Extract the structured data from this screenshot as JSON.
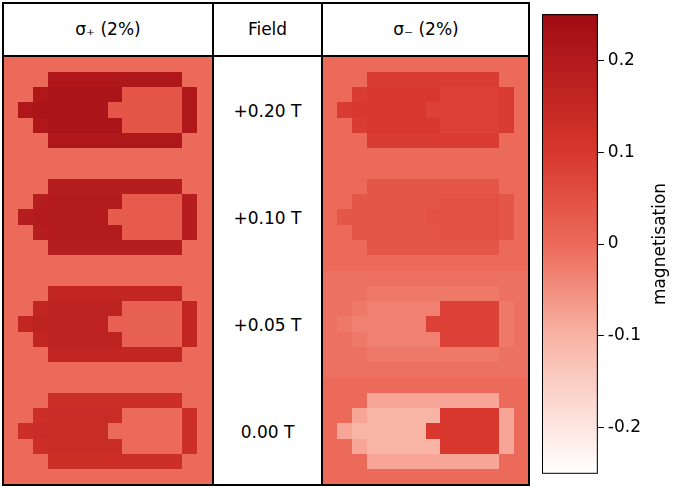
{
  "chart_data": {
    "type": "heatmap",
    "row_header": "Field",
    "rows": [
      "+0.20 T",
      "+0.10 T",
      "+0.05 T",
      "0.00 T"
    ],
    "columns": [
      {
        "title": "σ₊ (2%)",
        "cells": [
          [
            [
              0,
              0,
              0,
              0,
              0,
              0,
              0,
              0,
              0,
              0,
              0,
              0,
              0,
              0
            ],
            [
              0,
              0,
              0,
              0.21,
              0.21,
              0.21,
              0.21,
              0.21,
              0.21,
              0.21,
              0.21,
              0.21,
              0,
              0
            ],
            [
              0,
              0,
              0.21,
              0.22,
              0.22,
              0.22,
              0.22,
              0.22,
              0.04,
              0.04,
              0.04,
              0.04,
              0.21,
              0
            ],
            [
              0,
              0.21,
              0.22,
              0.22,
              0.22,
              0.22,
              0.22,
              0.04,
              0.04,
              0.04,
              0.04,
              0.04,
              0.21,
              0
            ],
            [
              0,
              0,
              0.21,
              0.22,
              0.22,
              0.22,
              0.22,
              0.22,
              0.04,
              0.04,
              0.04,
              0.04,
              0.21,
              0
            ],
            [
              0,
              0,
              0,
              0.21,
              0.21,
              0.21,
              0.21,
              0.21,
              0.21,
              0.21,
              0.21,
              0.21,
              0,
              0
            ],
            [
              0,
              0,
              0,
              0,
              0,
              0,
              0,
              0,
              0,
              0,
              0,
              0,
              0,
              0
            ]
          ],
          [
            [
              0,
              0,
              0,
              0,
              0,
              0,
              0,
              0,
              0,
              0,
              0,
              0,
              0,
              0
            ],
            [
              0,
              0,
              0,
              0.19,
              0.19,
              0.19,
              0.19,
              0.19,
              0.19,
              0.19,
              0.19,
              0.19,
              0,
              0
            ],
            [
              0,
              0,
              0.19,
              0.2,
              0.2,
              0.2,
              0.2,
              0.2,
              0.03,
              0.03,
              0.03,
              0.03,
              0.19,
              0
            ],
            [
              0,
              0.19,
              0.2,
              0.2,
              0.2,
              0.2,
              0.2,
              0.03,
              0.03,
              0.03,
              0.03,
              0.03,
              0.19,
              0
            ],
            [
              0,
              0,
              0.19,
              0.2,
              0.2,
              0.2,
              0.2,
              0.2,
              0.03,
              0.03,
              0.03,
              0.03,
              0.19,
              0
            ],
            [
              0,
              0,
              0,
              0.19,
              0.19,
              0.19,
              0.19,
              0.19,
              0.19,
              0.19,
              0.19,
              0.19,
              0,
              0
            ],
            [
              0,
              0,
              0,
              0,
              0,
              0,
              0,
              0,
              0,
              0,
              0,
              0,
              0,
              0
            ]
          ],
          [
            [
              0,
              0,
              0,
              0,
              0,
              0,
              0,
              0,
              0,
              0,
              0,
              0,
              0,
              0
            ],
            [
              0,
              0,
              0,
              0.16,
              0.16,
              0.16,
              0.16,
              0.16,
              0.16,
              0.16,
              0.16,
              0.16,
              0,
              0
            ],
            [
              0,
              0,
              0.16,
              0.17,
              0.17,
              0.17,
              0.17,
              0.17,
              0.02,
              0.02,
              0.02,
              0.02,
              0.16,
              0
            ],
            [
              0,
              0.16,
              0.17,
              0.17,
              0.17,
              0.17,
              0.17,
              0.02,
              0.02,
              0.02,
              0.02,
              0.02,
              0.16,
              0
            ],
            [
              0,
              0,
              0.16,
              0.17,
              0.17,
              0.17,
              0.17,
              0.17,
              0.02,
              0.02,
              0.02,
              0.02,
              0.16,
              0
            ],
            [
              0,
              0,
              0,
              0.16,
              0.16,
              0.16,
              0.16,
              0.16,
              0.16,
              0.16,
              0.16,
              0.16,
              0,
              0
            ],
            [
              0,
              0,
              0,
              0,
              0,
              0,
              0,
              0,
              0,
              0,
              0,
              0,
              0,
              0
            ]
          ],
          [
            [
              0,
              0,
              0,
              0,
              0,
              0,
              0,
              0,
              0,
              0,
              0,
              0,
              0,
              0
            ],
            [
              0,
              0,
              0,
              0.13,
              0.13,
              0.13,
              0.13,
              0.13,
              0.13,
              0.13,
              0.13,
              0.13,
              0,
              0
            ],
            [
              0,
              0,
              0.13,
              0.14,
              0.14,
              0.14,
              0.14,
              0.14,
              0,
              0,
              0,
              0,
              0.13,
              0
            ],
            [
              0,
              0.13,
              0.14,
              0.14,
              0.14,
              0.14,
              0.14,
              0,
              0,
              0,
              0,
              0,
              0.13,
              0
            ],
            [
              0,
              0,
              0.13,
              0.14,
              0.14,
              0.14,
              0.14,
              0.14,
              0,
              0,
              0,
              0,
              0.13,
              0
            ],
            [
              0,
              0,
              0,
              0.13,
              0.13,
              0.13,
              0.13,
              0.13,
              0.13,
              0.13,
              0.13,
              0.13,
              0,
              0
            ],
            [
              0,
              0,
              0,
              0,
              0,
              0,
              0,
              0,
              0,
              0,
              0,
              0,
              0,
              0
            ]
          ]
        ]
      },
      {
        "title": "σ₋ (2%)",
        "cells": [
          [
            [
              0,
              0,
              0,
              0,
              0,
              0,
              0,
              0,
              0,
              0,
              0,
              0,
              0,
              0
            ],
            [
              0,
              0,
              0,
              0.09,
              0.09,
              0.09,
              0.09,
              0.09,
              0.09,
              0.09,
              0.09,
              0.09,
              0,
              0
            ],
            [
              0,
              0,
              0.09,
              0.1,
              0.1,
              0.1,
              0.1,
              0.1,
              0.08,
              0.08,
              0.08,
              0.08,
              0.09,
              0
            ],
            [
              0,
              0.09,
              0.1,
              0.1,
              0.1,
              0.1,
              0.1,
              0.08,
              0.08,
              0.08,
              0.08,
              0.08,
              0.09,
              0
            ],
            [
              0,
              0,
              0.09,
              0.1,
              0.1,
              0.1,
              0.1,
              0.1,
              0.08,
              0.08,
              0.08,
              0.08,
              0.09,
              0
            ],
            [
              0,
              0,
              0,
              0.09,
              0.09,
              0.09,
              0.09,
              0.09,
              0.09,
              0.09,
              0.09,
              0.09,
              0,
              0
            ],
            [
              0,
              0,
              0,
              0,
              0,
              0,
              0,
              0,
              0,
              0,
              0,
              0,
              0,
              0
            ]
          ],
          [
            [
              0,
              0,
              0,
              0,
              0,
              0,
              0,
              0,
              0,
              0,
              0,
              0,
              0,
              0
            ],
            [
              0,
              0,
              0,
              0.04,
              0.04,
              0.04,
              0.04,
              0.04,
              0.04,
              0.04,
              0.04,
              0.04,
              0,
              0
            ],
            [
              0,
              0,
              0.04,
              0.04,
              0.04,
              0.04,
              0.04,
              0.04,
              0.05,
              0.05,
              0.05,
              0.05,
              0.04,
              0
            ],
            [
              0,
              0.04,
              0.04,
              0.04,
              0.04,
              0.04,
              0.04,
              0.05,
              0.05,
              0.05,
              0.05,
              0.05,
              0.04,
              0
            ],
            [
              0,
              0,
              0.04,
              0.04,
              0.04,
              0.04,
              0.04,
              0.04,
              0.05,
              0.05,
              0.05,
              0.05,
              0.04,
              0
            ],
            [
              0,
              0,
              0,
              0.04,
              0.04,
              0.04,
              0.04,
              0.04,
              0.04,
              0.04,
              0.04,
              0.04,
              0,
              0
            ],
            [
              0,
              0,
              0,
              0,
              0,
              0,
              0,
              0,
              0,
              0,
              0,
              0,
              0,
              0
            ]
          ],
          [
            [
              -0.01,
              -0.01,
              -0.01,
              -0.01,
              -0.01,
              -0.01,
              -0.01,
              -0.01,
              -0.01,
              -0.01,
              -0.01,
              -0.01,
              -0.01,
              -0.01
            ],
            [
              -0.01,
              -0.01,
              -0.01,
              -0.02,
              -0.02,
              -0.02,
              -0.02,
              -0.02,
              -0.02,
              -0.02,
              -0.02,
              -0.02,
              -0.01,
              -0.01
            ],
            [
              -0.01,
              -0.01,
              -0.02,
              -0.03,
              -0.03,
              -0.03,
              -0.03,
              -0.03,
              0.08,
              0.08,
              0.08,
              0.08,
              -0.02,
              -0.01
            ],
            [
              -0.01,
              -0.02,
              -0.03,
              -0.03,
              -0.03,
              -0.03,
              -0.03,
              0.08,
              0.08,
              0.08,
              0.08,
              0.08,
              -0.02,
              -0.01
            ],
            [
              -0.01,
              -0.01,
              -0.02,
              -0.03,
              -0.03,
              -0.03,
              -0.03,
              -0.03,
              0.08,
              0.08,
              0.08,
              0.08,
              -0.02,
              -0.01
            ],
            [
              -0.01,
              -0.01,
              -0.01,
              -0.02,
              -0.02,
              -0.02,
              -0.02,
              -0.02,
              -0.02,
              -0.02,
              -0.02,
              -0.02,
              -0.01,
              -0.01
            ],
            [
              -0.01,
              -0.01,
              -0.01,
              -0.01,
              -0.01,
              -0.01,
              -0.01,
              -0.01,
              -0.01,
              -0.01,
              -0.01,
              -0.01,
              -0.01,
              -0.01
            ]
          ],
          [
            [
              0,
              0,
              0,
              0,
              0,
              0,
              0,
              0,
              0,
              0,
              0,
              0,
              0,
              0
            ],
            [
              0,
              0,
              0,
              -0.08,
              -0.08,
              -0.08,
              -0.08,
              -0.08,
              -0.08,
              -0.08,
              -0.08,
              -0.08,
              0,
              0
            ],
            [
              0,
              0,
              -0.08,
              -0.1,
              -0.1,
              -0.1,
              -0.1,
              -0.1,
              0.1,
              0.1,
              0.1,
              0.1,
              -0.08,
              0
            ],
            [
              0,
              -0.08,
              -0.1,
              -0.1,
              -0.1,
              -0.1,
              -0.1,
              0.1,
              0.1,
              0.1,
              0.1,
              0.1,
              -0.08,
              0
            ],
            [
              0,
              0,
              -0.08,
              -0.1,
              -0.1,
              -0.1,
              -0.1,
              -0.1,
              0.1,
              0.1,
              0.1,
              0.1,
              -0.08,
              0
            ],
            [
              0,
              0,
              0,
              -0.08,
              -0.08,
              -0.08,
              -0.08,
              -0.08,
              -0.08,
              -0.08,
              -0.08,
              -0.08,
              0,
              0
            ],
            [
              0,
              0,
              0,
              0,
              0,
              0,
              0,
              0,
              0,
              0,
              0,
              0,
              0,
              0
            ]
          ]
        ]
      }
    ],
    "colorbar": {
      "label": "magnetisation",
      "range": [
        -0.25,
        0.25
      ],
      "ticks": [
        0.2,
        0.1,
        0,
        -0.1,
        -0.2
      ]
    }
  }
}
